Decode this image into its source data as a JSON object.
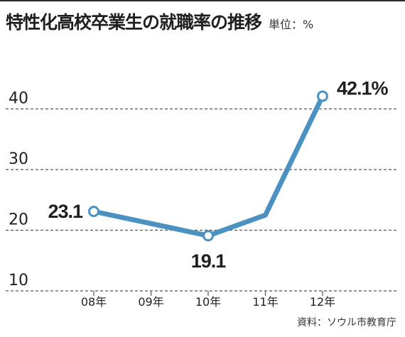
{
  "header": {
    "title": "特性化高校卒業生の就職率の推移",
    "unit": "単位：%"
  },
  "source": "資料：ソウル市教育庁",
  "colors": {
    "line": "#4b92c3",
    "grid": "#555555",
    "text": "#222222"
  },
  "chart_data": {
    "type": "line",
    "categories": [
      "08年",
      "09年",
      "10年",
      "11年",
      "12年"
    ],
    "series": [
      {
        "values": [
          23.1,
          null,
          19.1,
          22.5,
          42.1
        ]
      }
    ],
    "data_labels": [
      {
        "index": 0,
        "text": "23.1"
      },
      {
        "index": 2,
        "text": "19.1"
      },
      {
        "index": 4,
        "text": "42.1%"
      }
    ],
    "marked_points": [
      0,
      2,
      4
    ],
    "y_ticks": [
      10,
      20,
      30,
      40
    ],
    "ylim": [
      10,
      44
    ],
    "grid": true,
    "xlabel": "",
    "ylabel": "",
    "title": ""
  }
}
